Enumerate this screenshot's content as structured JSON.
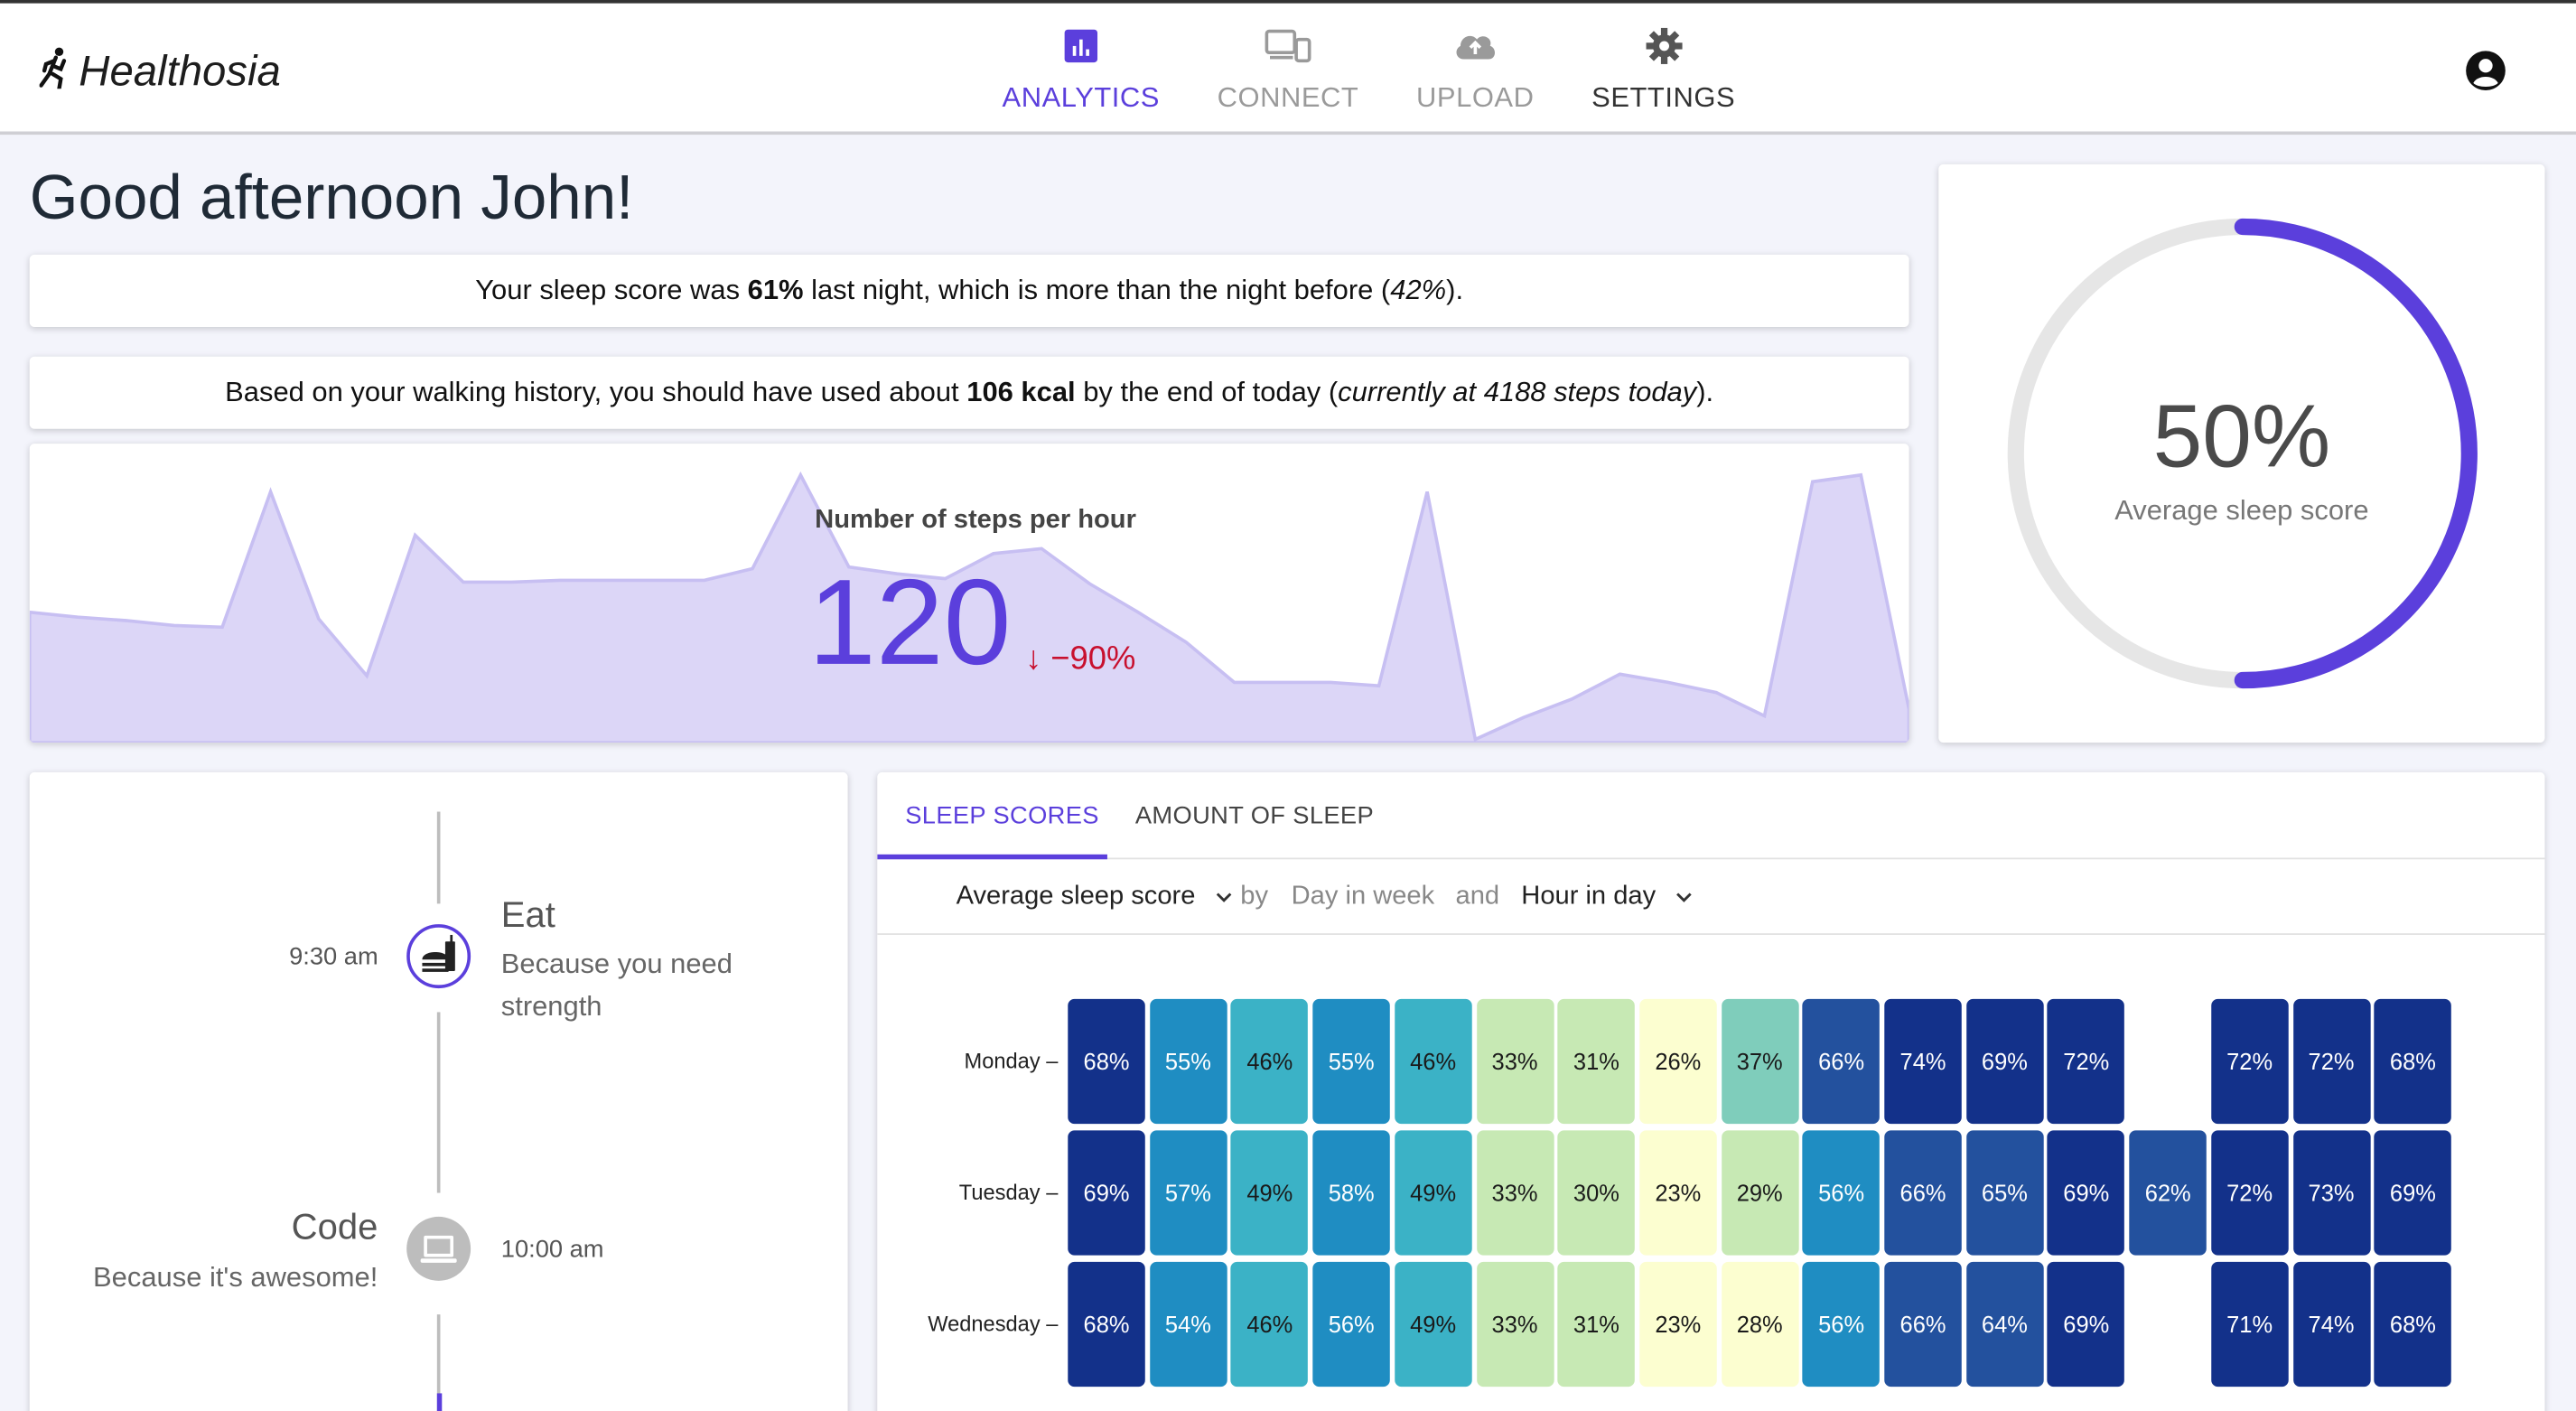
{
  "brand": {
    "name": "Healthosia"
  },
  "nav": [
    {
      "label": "ANALYTICS",
      "icon": "bar-chart-icon"
    },
    {
      "label": "CONNECT",
      "icon": "devices-icon"
    },
    {
      "label": "UPLOAD",
      "icon": "cloud-upload-icon"
    },
    {
      "label": "SETTINGS",
      "icon": "gear-icon"
    }
  ],
  "greeting": "Good afternoon John!",
  "sleep_card": {
    "p1": "Your sleep score was ",
    "b1": "61%",
    "p2": " last night, which is more than the night before (",
    "i1": "42%",
    "p3": ")."
  },
  "walk_card": {
    "p1": "Based on your walking history, you should have used about ",
    "b1": "106 kcal",
    "p2": " by the end of today (",
    "i1": "currently at 4188 steps today",
    "p3": ")."
  },
  "steps": {
    "title": "Number of steps per hour",
    "value": "120",
    "delta": "↓ −90%",
    "sparkline": [
      78,
      75,
      73,
      70,
      69,
      150,
      74,
      40,
      124,
      96,
      96,
      97,
      97,
      97,
      97,
      104,
      160,
      105,
      101,
      98,
      113,
      116,
      95,
      78,
      60,
      36,
      36,
      36,
      34,
      150,
      2,
      15,
      26,
      41,
      36,
      30,
      16,
      156,
      160,
      20
    ]
  },
  "sleep_score": {
    "value": "50%",
    "label": "Average sleep score",
    "fraction": 0.5
  },
  "timeline": [
    {
      "time": "9:30 am",
      "title": "Eat",
      "sub1": "Because you need",
      "sub2": "strength",
      "icon": "fastfood-icon"
    },
    {
      "time": "10:00 am",
      "title": "Code",
      "sub1": "Because it's awesome!",
      "icon": "laptop-icon"
    }
  ],
  "heatmap": {
    "tabs": [
      "SLEEP SCORES",
      "AMOUNT OF SLEEP"
    ],
    "filters": {
      "metric": "Average sleep score",
      "by": "by",
      "dim1": "Day in week",
      "and": "and",
      "dim2": "Hour in day"
    },
    "rows": [
      {
        "day": "Monday",
        "values": [
          "68%",
          "55%",
          "46%",
          "55%",
          "46%",
          "33%",
          "31%",
          "26%",
          "37%",
          "66%",
          "74%",
          "69%",
          "72%",
          "",
          "72%",
          "72%",
          "68%"
        ]
      },
      {
        "day": "Tuesday",
        "values": [
          "69%",
          "57%",
          "49%",
          "58%",
          "49%",
          "33%",
          "30%",
          "23%",
          "29%",
          "56%",
          "66%",
          "65%",
          "69%",
          "62%",
          "72%",
          "73%",
          "69%"
        ]
      },
      {
        "day": "Wednesday",
        "values": [
          "68%",
          "54%",
          "46%",
          "56%",
          "49%",
          "33%",
          "31%",
          "23%",
          "28%",
          "56%",
          "66%",
          "64%",
          "69%",
          "",
          "71%",
          "74%",
          "68%"
        ]
      }
    ]
  },
  "colors": {
    "accent": "#5b3fdc",
    "danger": "#c8102e",
    "spark": "#dcd6f7"
  }
}
